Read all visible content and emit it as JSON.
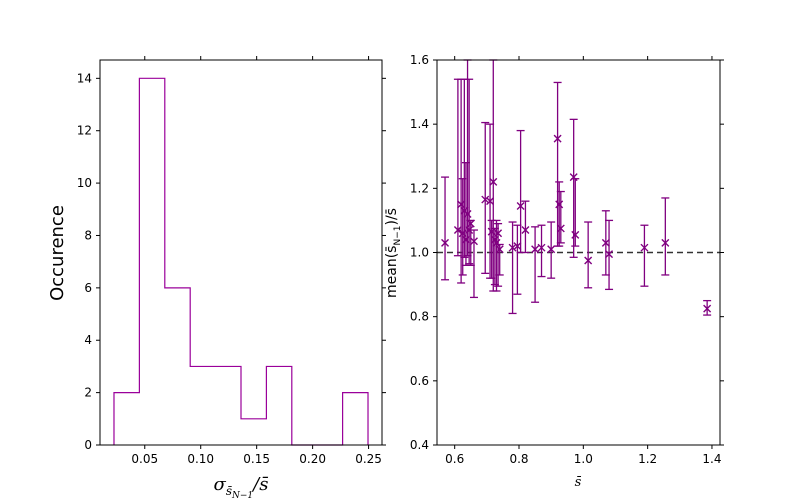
{
  "chart_data": [
    {
      "type": "histogram",
      "xlabel": "σ_{s̄_{N−1}}/s̄",
      "ylabel": "Occurence",
      "xlim": [
        0.01,
        0.262
      ],
      "ylim": [
        0,
        14.7
      ],
      "xticks": [
        0.05,
        0.1,
        0.15,
        0.2,
        0.25
      ],
      "xtick_labels": [
        "0.05",
        "0.10",
        "0.15",
        "0.20",
        "0.25"
      ],
      "yticks": [
        0,
        2,
        4,
        6,
        8,
        10,
        12,
        14
      ],
      "ytick_labels": [
        "0",
        "2",
        "4",
        "6",
        "8",
        "10",
        "12",
        "14"
      ],
      "bin_edges": [
        0.0225,
        0.0452,
        0.0679,
        0.0906,
        0.1133,
        0.136,
        0.1587,
        0.1814,
        0.2041,
        0.2268,
        0.2495
      ],
      "counts": [
        2,
        14,
        6,
        3,
        3,
        1,
        3,
        0,
        0,
        2
      ],
      "color": "#9a009a",
      "grid": false
    },
    {
      "type": "scatter",
      "xlabel": "s̄",
      "ylabel": "mean(s̄_{N−1})/s̄",
      "xlim": [
        0.545,
        1.425
      ],
      "ylim": [
        0.4,
        1.6
      ],
      "xticks": [
        0.6,
        0.8,
        1.0,
        1.2,
        1.4
      ],
      "xtick_labels": [
        "0.6",
        "0.8",
        "1.0",
        "1.2",
        "1.4"
      ],
      "yticks": [
        0.4,
        0.6,
        0.8,
        1.0,
        1.2,
        1.4,
        1.6
      ],
      "ytick_labels": [
        "0.4",
        "0.6",
        "0.8",
        "1.0",
        "1.2",
        "1.4",
        "1.6"
      ],
      "reference_line": 1.0,
      "color": "#800080",
      "grid": false,
      "points": [
        {
          "x": 0.57,
          "y": 1.03,
          "lo": 0.915,
          "hi": 1.235
        },
        {
          "x": 0.61,
          "y": 1.07,
          "lo": 0.99,
          "hi": 1.54
        },
        {
          "x": 0.62,
          "y": 1.15,
          "lo": 0.905,
          "hi": 1.54
        },
        {
          "x": 0.625,
          "y": 1.06,
          "lo": 0.93,
          "hi": 1.23
        },
        {
          "x": 0.63,
          "y": 1.13,
          "lo": 0.985,
          "hi": 1.54
        },
        {
          "x": 0.635,
          "y": 1.04,
          "lo": 0.96,
          "hi": 1.28
        },
        {
          "x": 0.64,
          "y": 1.12,
          "lo": 0.99,
          "hi": 1.6
        },
        {
          "x": 0.645,
          "y": 1.07,
          "lo": 0.965,
          "hi": 1.54
        },
        {
          "x": 0.65,
          "y": 1.09,
          "lo": 0.96,
          "hi": 1.1
        },
        {
          "x": 0.66,
          "y": 1.035,
          "lo": 0.86,
          "hi": 1.07
        },
        {
          "x": 0.695,
          "y": 1.165,
          "lo": 0.935,
          "hi": 1.405
        },
        {
          "x": 0.71,
          "y": 1.16,
          "lo": 0.92,
          "hi": 1.4
        },
        {
          "x": 0.715,
          "y": 1.065,
          "lo": 0.92,
          "hi": 1.1
        },
        {
          "x": 0.72,
          "y": 1.22,
          "lo": 0.88,
          "hi": 1.6
        },
        {
          "x": 0.725,
          "y": 1.04,
          "lo": 0.9,
          "hi": 1.075
        },
        {
          "x": 0.73,
          "y": 1.03,
          "lo": 0.88,
          "hi": 1.1
        },
        {
          "x": 0.735,
          "y": 1.06,
          "lo": 0.895,
          "hi": 1.09
        },
        {
          "x": 0.74,
          "y": 1.01,
          "lo": 0.93,
          "hi": 1.025
        },
        {
          "x": 0.78,
          "y": 1.015,
          "lo": 0.81,
          "hi": 1.095
        },
        {
          "x": 0.795,
          "y": 1.02,
          "lo": 0.87,
          "hi": 1.085
        },
        {
          "x": 0.805,
          "y": 1.145,
          "lo": 1.0,
          "hi": 1.38
        },
        {
          "x": 0.82,
          "y": 1.07,
          "lo": 1.0,
          "hi": 1.16
        },
        {
          "x": 0.85,
          "y": 1.01,
          "lo": 0.845,
          "hi": 1.08
        },
        {
          "x": 0.87,
          "y": 1.015,
          "lo": 0.925,
          "hi": 1.085
        },
        {
          "x": 0.9,
          "y": 1.01,
          "lo": 0.92,
          "hi": 1.095
        },
        {
          "x": 0.92,
          "y": 1.355,
          "lo": 1.02,
          "hi": 1.53
        },
        {
          "x": 0.925,
          "y": 1.15,
          "lo": 1.02,
          "hi": 1.22
        },
        {
          "x": 0.93,
          "y": 1.075,
          "lo": 1.03,
          "hi": 1.19
        },
        {
          "x": 0.97,
          "y": 1.235,
          "lo": 0.985,
          "hi": 1.415
        },
        {
          "x": 0.975,
          "y": 1.055,
          "lo": 1.02,
          "hi": 1.23
        },
        {
          "x": 1.015,
          "y": 0.975,
          "lo": 0.89,
          "hi": 1.095
        },
        {
          "x": 1.07,
          "y": 1.03,
          "lo": 0.93,
          "hi": 1.13
        },
        {
          "x": 1.08,
          "y": 0.995,
          "lo": 0.885,
          "hi": 1.1
        },
        {
          "x": 1.19,
          "y": 1.015,
          "lo": 0.895,
          "hi": 1.085
        },
        {
          "x": 1.255,
          "y": 1.03,
          "lo": 0.93,
          "hi": 1.17
        },
        {
          "x": 1.385,
          "y": 0.825,
          "lo": 0.805,
          "hi": 0.85
        }
      ]
    }
  ]
}
